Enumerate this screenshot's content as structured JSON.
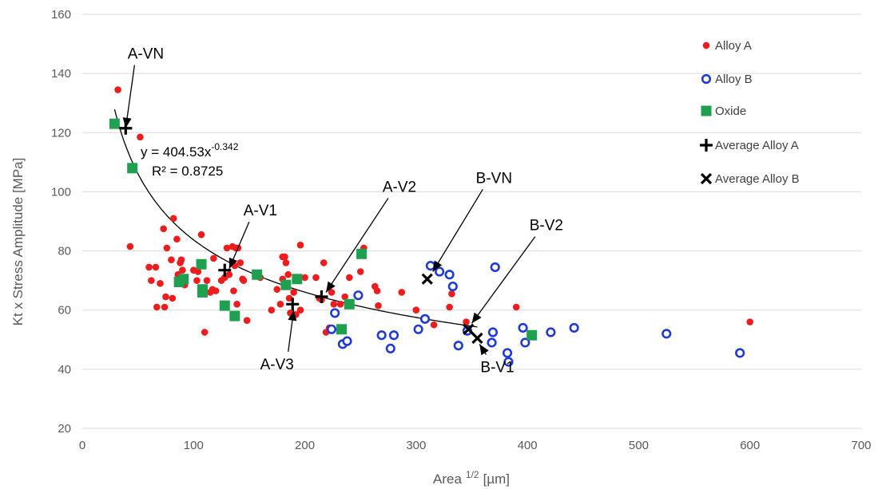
{
  "colors": {
    "alloy_a": "#ee1c1c",
    "alloy_b": "#1f3ad6",
    "oxide": "#1fa050",
    "average": "#000000",
    "grid": "#d9d9d9",
    "axis_text": "#595959"
  },
  "chart_data": {
    "type": "scatter",
    "xlabel": "Area",
    "xlabel_sup": "1/2",
    "xlabel_unit": "[µm]",
    "ylabel": "Kt x Stress Amplitude  [MPa]",
    "xlim": [
      0,
      700
    ],
    "ylim": [
      20,
      160
    ],
    "x_ticks": [
      0,
      100,
      200,
      300,
      400,
      500,
      600,
      700
    ],
    "y_ticks": [
      20,
      40,
      60,
      80,
      100,
      120,
      140,
      160
    ],
    "grid": "horizontal",
    "legend_position": "right",
    "series": [
      {
        "name": "Alloy A",
        "marker": "dot",
        "points": [
          [
            32,
            134.5
          ],
          [
            52,
            118.5
          ],
          [
            43,
            81.5
          ],
          [
            60,
            74.5
          ],
          [
            62,
            70
          ],
          [
            66,
            74.5
          ],
          [
            67,
            61
          ],
          [
            70,
            69
          ],
          [
            73,
            87.5
          ],
          [
            74,
            61
          ],
          [
            75,
            64.5
          ],
          [
            76,
            81
          ],
          [
            80,
            77
          ],
          [
            81,
            64
          ],
          [
            82,
            91
          ],
          [
            85,
            84
          ],
          [
            86,
            72
          ],
          [
            87,
            69.5
          ],
          [
            88,
            76
          ],
          [
            89,
            77
          ],
          [
            90,
            73.5
          ],
          [
            92,
            68.5
          ],
          [
            100,
            73.5
          ],
          [
            103,
            70
          ],
          [
            104,
            73
          ],
          [
            107,
            85.5
          ],
          [
            108,
            67.5
          ],
          [
            110,
            52.5
          ],
          [
            112,
            70
          ],
          [
            115,
            66
          ],
          [
            117,
            67
          ],
          [
            118,
            77.5
          ],
          [
            120,
            66.5
          ],
          [
            125,
            70
          ],
          [
            128,
            71
          ],
          [
            130,
            81
          ],
          [
            132,
            72
          ],
          [
            135,
            81.5
          ],
          [
            136,
            66.5
          ],
          [
            137,
            75
          ],
          [
            138,
            81
          ],
          [
            139,
            62
          ],
          [
            140,
            81
          ],
          [
            142,
            76
          ],
          [
            144,
            70.5
          ],
          [
            145,
            70
          ],
          [
            148,
            56.5
          ],
          [
            160,
            71
          ],
          [
            170,
            60
          ],
          [
            175,
            67
          ],
          [
            178,
            62
          ],
          [
            180,
            70.5
          ],
          [
            180,
            78
          ],
          [
            182,
            78
          ],
          [
            183,
            76
          ],
          [
            185,
            72
          ],
          [
            186,
            64
          ],
          [
            187,
            59
          ],
          [
            190,
            66
          ],
          [
            192,
            58.5
          ],
          [
            196,
            82
          ],
          [
            196,
            60
          ],
          [
            200,
            71
          ],
          [
            210,
            71
          ],
          [
            213,
            64
          ],
          [
            215,
            63.5
          ],
          [
            217,
            76
          ],
          [
            219,
            52.5
          ],
          [
            222,
            54
          ],
          [
            224,
            66
          ],
          [
            226,
            62
          ],
          [
            232,
            62
          ],
          [
            236,
            64.5
          ],
          [
            240,
            71
          ],
          [
            250,
            73
          ],
          [
            253,
            81
          ],
          [
            263,
            68
          ],
          [
            265,
            66.5
          ],
          [
            266,
            61.5
          ],
          [
            287,
            66
          ],
          [
            300,
            60
          ],
          [
            316,
            55
          ],
          [
            330,
            61
          ],
          [
            332,
            65.5
          ],
          [
            345,
            56
          ],
          [
            390,
            61
          ],
          [
            600,
            56
          ]
        ]
      },
      {
        "name": "Alloy B",
        "marker": "ring",
        "points": [
          [
            224,
            53.5
          ],
          [
            227,
            59
          ],
          [
            234,
            48.5
          ],
          [
            238,
            49.5
          ],
          [
            248,
            65
          ],
          [
            269,
            51.5
          ],
          [
            277,
            47
          ],
          [
            280,
            51.5
          ],
          [
            302,
            53.5
          ],
          [
            308,
            57
          ],
          [
            313,
            75
          ],
          [
            321,
            73
          ],
          [
            330,
            72
          ],
          [
            333,
            68
          ],
          [
            338,
            48
          ],
          [
            346,
            53
          ],
          [
            368,
            49
          ],
          [
            369,
            52.5
          ],
          [
            371,
            74.5
          ],
          [
            382,
            45.5
          ],
          [
            383,
            42.5
          ],
          [
            396,
            54
          ],
          [
            398,
            49
          ],
          [
            421,
            52.5
          ],
          [
            442,
            54
          ],
          [
            525,
            52
          ],
          [
            591,
            45.5
          ]
        ]
      },
      {
        "name": "Oxide",
        "marker": "square",
        "points": [
          [
            29,
            123
          ],
          [
            45,
            108
          ],
          [
            87,
            69.5
          ],
          [
            91,
            70.5
          ],
          [
            107,
            75.5
          ],
          [
            108,
            67
          ],
          [
            108,
            66
          ],
          [
            128,
            61.5
          ],
          [
            137,
            58
          ],
          [
            157,
            72
          ],
          [
            183,
            68.5
          ],
          [
            193,
            70.5
          ],
          [
            233,
            53.5
          ],
          [
            240,
            62
          ],
          [
            251,
            79
          ],
          [
            404,
            51.5
          ]
        ]
      },
      {
        "name": "Average Alloy A",
        "marker": "plus",
        "points": [
          [
            39,
            121.5
          ],
          [
            128,
            73.5
          ],
          [
            189,
            62
          ],
          [
            215,
            64.5
          ]
        ]
      },
      {
        "name": "Average Alloy B",
        "marker": "x",
        "points": [
          [
            310,
            70.5
          ],
          [
            347,
            53.5
          ],
          [
            355,
            50.5
          ]
        ]
      }
    ],
    "trendline": {
      "equation_text": "y = 404.53x",
      "exponent_text": "-0.342",
      "r2_text": "R² = 0.8725",
      "a": 404.53,
      "b": -0.342,
      "x_range": [
        29,
        355
      ]
    },
    "annotations": [
      {
        "label": "A-VN",
        "target": [
          39,
          121.5
        ],
        "text_at": [
          57,
          145
        ]
      },
      {
        "label": "A-V1",
        "target": [
          132,
          74
        ],
        "text_at": [
          160,
          92
        ]
      },
      {
        "label": "A-V2",
        "target": [
          219,
          66
        ],
        "text_at": [
          285,
          100
        ]
      },
      {
        "label": "A-V3",
        "target": [
          190,
          60
        ],
        "text_at": [
          175,
          40
        ]
      },
      {
        "label": "B-VN",
        "target": [
          315,
          73
        ],
        "text_at": [
          370,
          103
        ]
      },
      {
        "label": "B-V2",
        "target": [
          350,
          55.5
        ],
        "text_at": [
          417,
          87
        ]
      },
      {
        "label": "B-V1",
        "target": [
          357,
          48.5
        ],
        "text_at": [
          373,
          39
        ]
      }
    ]
  }
}
